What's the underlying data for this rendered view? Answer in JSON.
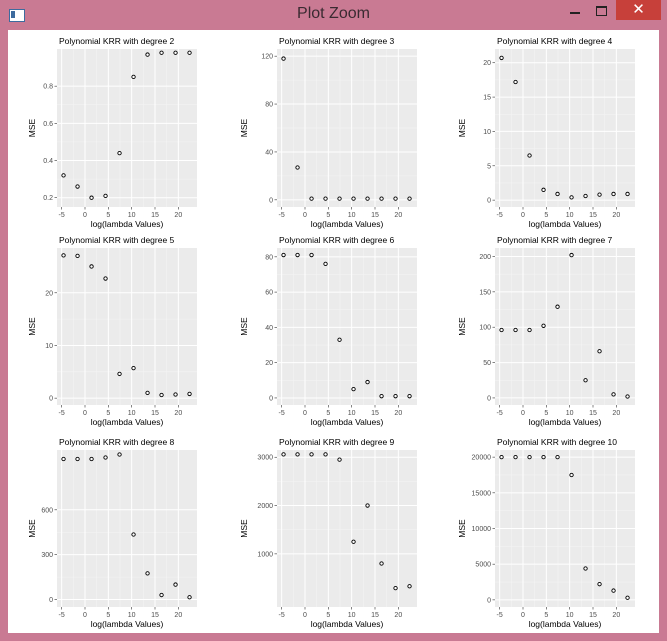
{
  "window": {
    "title": "Plot Zoom",
    "titlebar_color": "#c97a93",
    "close_color": "#c7403a",
    "icons": {
      "minimize": "minimize-icon",
      "maximize": "maximize-icon",
      "close": "close-icon",
      "app": "app-icon"
    }
  },
  "chart_data": [
    {
      "type": "scatter",
      "title": "Polynomial KRR with degree 2",
      "xlabel": "log(lambda Values)",
      "ylabel": "MSE",
      "xlim": [
        -6,
        24
      ],
      "ylim": [
        0.15,
        1.0
      ],
      "xticks": [
        -5,
        0,
        5,
        10,
        15,
        20
      ],
      "yticks": [
        0.2,
        0.4,
        0.6,
        0.8
      ],
      "ytick_labels": [
        "0.2",
        "0.4",
        "0.6",
        "0.8"
      ],
      "x": [
        -4.6,
        -1.6,
        1.4,
        4.4,
        7.4,
        10.4,
        13.4,
        16.4,
        19.4,
        22.4
      ],
      "y": [
        0.32,
        0.26,
        0.2,
        0.21,
        0.44,
        0.85,
        0.97,
        0.98,
        0.98,
        0.98
      ]
    },
    {
      "type": "scatter",
      "title": "Polynomial KRR with degree 3",
      "xlabel": "log(lambda Values)",
      "ylabel": "MSE",
      "xlim": [
        -6,
        24
      ],
      "ylim": [
        -6,
        126
      ],
      "xticks": [
        -5,
        0,
        5,
        10,
        15,
        20
      ],
      "yticks": [
        0,
        40,
        80,
        120
      ],
      "ytick_labels": [
        "0",
        "40",
        "80",
        "120"
      ],
      "x": [
        -4.6,
        -1.6,
        1.4,
        4.4,
        7.4,
        10.4,
        13.4,
        16.4,
        19.4,
        22.4
      ],
      "y": [
        118,
        27,
        1,
        1,
        1,
        1,
        1,
        1,
        1,
        1
      ]
    },
    {
      "type": "scatter",
      "title": "Polynomial KRR with degree 4",
      "xlabel": "log(lambda Values)",
      "ylabel": "MSE",
      "xlim": [
        -6,
        24
      ],
      "ylim": [
        -1,
        22
      ],
      "xticks": [
        -5,
        0,
        5,
        10,
        15,
        20
      ],
      "yticks": [
        0,
        5,
        10,
        15,
        20
      ],
      "ytick_labels": [
        "0",
        "5",
        "10",
        "15",
        "20"
      ],
      "x": [
        -4.6,
        -1.6,
        1.4,
        4.4,
        7.4,
        10.4,
        13.4,
        16.4,
        19.4,
        22.4
      ],
      "y": [
        20.7,
        17.2,
        6.5,
        1.5,
        0.9,
        0.4,
        0.6,
        0.8,
        0.9,
        0.9
      ]
    },
    {
      "type": "scatter",
      "title": "Polynomial KRR with degree 5",
      "xlabel": "log(lambda Values)",
      "ylabel": "MSE",
      "xlim": [
        -6,
        24
      ],
      "ylim": [
        -1.3,
        28.5
      ],
      "xticks": [
        -5,
        0,
        5,
        10,
        15,
        20
      ],
      "yticks": [
        0,
        10,
        20
      ],
      "ytick_labels": [
        "0",
        "10",
        "20"
      ],
      "x": [
        -4.6,
        -1.6,
        1.4,
        4.4,
        7.4,
        10.4,
        13.4,
        16.4,
        19.4,
        22.4
      ],
      "y": [
        27.1,
        27.0,
        25.0,
        22.7,
        4.6,
        5.7,
        1.0,
        0.6,
        0.7,
        0.8
      ]
    },
    {
      "type": "scatter",
      "title": "Polynomial KRR with degree 6",
      "xlabel": "log(lambda Values)",
      "ylabel": "MSE",
      "xlim": [
        -6,
        24
      ],
      "ylim": [
        -4,
        85
      ],
      "xticks": [
        -5,
        0,
        5,
        10,
        15,
        20
      ],
      "yticks": [
        0,
        20,
        40,
        60,
        80
      ],
      "ytick_labels": [
        "0",
        "20",
        "40",
        "60",
        "80"
      ],
      "x": [
        -4.6,
        -1.6,
        1.4,
        4.4,
        7.4,
        10.4,
        13.4,
        16.4,
        19.4,
        22.4
      ],
      "y": [
        81,
        81,
        81,
        76,
        33,
        5,
        9,
        1,
        1,
        1
      ]
    },
    {
      "type": "scatter",
      "title": "Polynomial KRR with degree 7",
      "xlabel": "log(lambda Values)",
      "ylabel": "MSE",
      "xlim": [
        -6,
        24
      ],
      "ylim": [
        -10,
        212
      ],
      "xticks": [
        -5,
        0,
        5,
        10,
        15,
        20
      ],
      "yticks": [
        0,
        50,
        100,
        150,
        200
      ],
      "ytick_labels": [
        "0",
        "50",
        "100",
        "150",
        "200"
      ],
      "x": [
        -4.6,
        -1.6,
        1.4,
        4.4,
        7.4,
        10.4,
        13.4,
        16.4,
        19.4,
        22.4
      ],
      "y": [
        96,
        96,
        96,
        102,
        129,
        202,
        25,
        66,
        5,
        2
      ]
    },
    {
      "type": "scatter",
      "title": "Polynomial KRR with degree 8",
      "xlabel": "log(lambda Values)",
      "ylabel": "MSE",
      "xlim": [
        -6,
        24
      ],
      "ylim": [
        -50,
        1000
      ],
      "xticks": [
        -5,
        0,
        5,
        10,
        15,
        20
      ],
      "yticks": [
        0,
        300,
        600
      ],
      "ytick_labels": [
        "0",
        "300",
        "600"
      ],
      "x": [
        -4.6,
        -1.6,
        1.4,
        4.4,
        7.4,
        10.4,
        13.4,
        16.4,
        19.4,
        22.4
      ],
      "y": [
        940,
        940,
        940,
        950,
        970,
        435,
        175,
        30,
        100,
        15
      ]
    },
    {
      "type": "scatter",
      "title": "Polynomial KRR with degree 9",
      "xlabel": "log(lambda Values)",
      "ylabel": "MSE",
      "xlim": [
        -6,
        24
      ],
      "ylim": [
        -100,
        3150
      ],
      "xticks": [
        -5,
        0,
        5,
        10,
        15,
        20
      ],
      "yticks": [
        1000,
        2000,
        3000
      ],
      "ytick_labels": [
        "1000",
        "2000",
        "3000"
      ],
      "x": [
        -4.6,
        -1.6,
        1.4,
        4.4,
        7.4,
        10.4,
        13.4,
        16.4,
        19.4,
        22.4
      ],
      "y": [
        3060,
        3060,
        3060,
        3060,
        2950,
        1250,
        2000,
        800,
        290,
        330
      ]
    },
    {
      "type": "scatter",
      "title": "Polynomial KRR with degree 10",
      "xlabel": "log(lambda Values)",
      "ylabel": "MSE",
      "xlim": [
        -6,
        24
      ],
      "ylim": [
        -1000,
        21000
      ],
      "xticks": [
        -5,
        0,
        5,
        10,
        15,
        20
      ],
      "yticks": [
        0,
        5000,
        10000,
        15000,
        20000
      ],
      "ytick_labels": [
        "0",
        "5000",
        "10000",
        "15000",
        "20000"
      ],
      "x": [
        -4.6,
        -1.6,
        1.4,
        4.4,
        7.4,
        10.4,
        13.4,
        16.4,
        19.4,
        22.4
      ],
      "y": [
        20000,
        20000,
        20000,
        20000,
        20000,
        17500,
        4400,
        2200,
        1300,
        300
      ]
    }
  ]
}
